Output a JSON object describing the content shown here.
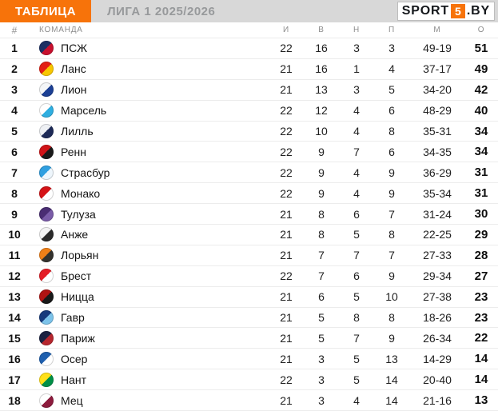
{
  "header": {
    "badge": "ТАБЛИЦА",
    "title": "ЛИГА 1 2025/2026",
    "logo": {
      "part1": "SPORT",
      "part2": "5",
      "part3": ".BY"
    }
  },
  "colors": {
    "accent_orange": "#F7730A",
    "topbar_gray": "#D8D8D8",
    "title_text": "#97999B",
    "separator": "#ECECEC"
  },
  "table": {
    "columns": [
      "#",
      "КОМАНДА",
      "И",
      "В",
      "Н",
      "П",
      "М",
      "О"
    ],
    "rows": [
      {
        "pos": "1",
        "team": "ПСЖ",
        "logo_icon": "psg-logo",
        "logo_colors": [
          "#1b2f63",
          "#c8102e"
        ],
        "p": "22",
        "w": "16",
        "d": "3",
        "l": "3",
        "goals": "49-19",
        "pts": "51"
      },
      {
        "pos": "2",
        "team": "Ланс",
        "logo_icon": "lens-logo",
        "logo_colors": [
          "#e31f13",
          "#f7c600"
        ],
        "p": "21",
        "w": "16",
        "d": "1",
        "l": "4",
        "goals": "37-17",
        "pts": "49"
      },
      {
        "pos": "3",
        "team": "Лион",
        "logo_icon": "lyon-logo",
        "logo_colors": [
          "#f4f6f8",
          "#1b3f94"
        ],
        "p": "21",
        "w": "13",
        "d": "3",
        "l": "5",
        "goals": "34-20",
        "pts": "42"
      },
      {
        "pos": "4",
        "team": "Марсель",
        "logo_icon": "marseille-logo",
        "logo_colors": [
          "#ffffff",
          "#2faee0"
        ],
        "p": "22",
        "w": "12",
        "d": "4",
        "l": "6",
        "goals": "48-29",
        "pts": "40"
      },
      {
        "pos": "5",
        "team": "Лилль",
        "logo_icon": "lille-logo",
        "logo_colors": [
          "#eef0f4",
          "#1d2a57"
        ],
        "p": "22",
        "w": "10",
        "d": "4",
        "l": "8",
        "goals": "35-31",
        "pts": "34"
      },
      {
        "pos": "6",
        "team": "Ренн",
        "logo_icon": "rennes-logo",
        "logo_colors": [
          "#d01317",
          "#1a1a1a"
        ],
        "p": "22",
        "w": "9",
        "d": "7",
        "l": "6",
        "goals": "34-35",
        "pts": "34"
      },
      {
        "pos": "7",
        "team": "Страсбур",
        "logo_icon": "strasbourg-logo",
        "logo_colors": [
          "#2f9fe0",
          "#eef6fc"
        ],
        "p": "22",
        "w": "9",
        "d": "4",
        "l": "9",
        "goals": "36-29",
        "pts": "31"
      },
      {
        "pos": "8",
        "team": "Монако",
        "logo_icon": "monaco-logo",
        "logo_colors": [
          "#d51317",
          "#ffffff"
        ],
        "p": "22",
        "w": "9",
        "d": "4",
        "l": "9",
        "goals": "35-34",
        "pts": "31"
      },
      {
        "pos": "9",
        "team": "Тулуза",
        "logo_icon": "toulouse-logo",
        "logo_colors": [
          "#4a2d73",
          "#7a5ca8"
        ],
        "p": "21",
        "w": "8",
        "d": "6",
        "l": "7",
        "goals": "31-24",
        "pts": "30"
      },
      {
        "pos": "10",
        "team": "Анже",
        "logo_icon": "angers-logo",
        "logo_colors": [
          "#f5f5f5",
          "#2b2b2b"
        ],
        "p": "21",
        "w": "8",
        "d": "5",
        "l": "8",
        "goals": "22-25",
        "pts": "29"
      },
      {
        "pos": "11",
        "team": "Лорьян",
        "logo_icon": "lorient-logo",
        "logo_colors": [
          "#f08018",
          "#33322e"
        ],
        "p": "21",
        "w": "7",
        "d": "7",
        "l": "7",
        "goals": "27-33",
        "pts": "28"
      },
      {
        "pos": "12",
        "team": "Брест",
        "logo_icon": "brest-logo",
        "logo_colors": [
          "#e41d25",
          "#ffffff"
        ],
        "p": "22",
        "w": "7",
        "d": "6",
        "l": "9",
        "goals": "29-34",
        "pts": "27"
      },
      {
        "pos": "13",
        "team": "Ницца",
        "logo_icon": "nice-logo",
        "logo_colors": [
          "#b01312",
          "#191919"
        ],
        "p": "21",
        "w": "6",
        "d": "5",
        "l": "10",
        "goals": "27-38",
        "pts": "23"
      },
      {
        "pos": "14",
        "team": "Гавр",
        "logo_icon": "lehavre-logo",
        "logo_colors": [
          "#173a7c",
          "#7cc3ea"
        ],
        "p": "21",
        "w": "5",
        "d": "8",
        "l": "8",
        "goals": "18-26",
        "pts": "23"
      },
      {
        "pos": "15",
        "team": "Париж",
        "logo_icon": "paris-fc-logo",
        "logo_colors": [
          "#1a2141",
          "#b6262e"
        ],
        "p": "21",
        "w": "5",
        "d": "7",
        "l": "9",
        "goals": "26-34",
        "pts": "22"
      },
      {
        "pos": "16",
        "team": "Осер",
        "logo_icon": "auxerre-logo",
        "logo_colors": [
          "#1e5fae",
          "#ffffff"
        ],
        "p": "21",
        "w": "3",
        "d": "5",
        "l": "13",
        "goals": "14-29",
        "pts": "14"
      },
      {
        "pos": "17",
        "team": "Нант",
        "logo_icon": "nantes-logo",
        "logo_colors": [
          "#ffe01a",
          "#008f47"
        ],
        "p": "22",
        "w": "3",
        "d": "5",
        "l": "14",
        "goals": "20-40",
        "pts": "14"
      },
      {
        "pos": "18",
        "team": "Мец",
        "logo_icon": "metz-logo",
        "logo_colors": [
          "#ffffff",
          "#8d1b3d"
        ],
        "p": "21",
        "w": "3",
        "d": "4",
        "l": "14",
        "goals": "21-16",
        "pts": "13"
      }
    ]
  },
  "chart_data": {
    "type": "table",
    "title": "ЛИГА 1 2025/2026",
    "columns": [
      "#",
      "КОМАНДА",
      "И",
      "В",
      "Н",
      "П",
      "М",
      "О"
    ],
    "rows": [
      [
        1,
        "ПСЖ",
        22,
        16,
        3,
        3,
        "49-19",
        51
      ],
      [
        2,
        "Ланс",
        21,
        16,
        1,
        4,
        "37-17",
        49
      ],
      [
        3,
        "Лион",
        21,
        13,
        3,
        5,
        "34-20",
        42
      ],
      [
        4,
        "Марсель",
        22,
        12,
        4,
        6,
        "48-29",
        40
      ],
      [
        5,
        "Лилль",
        22,
        10,
        4,
        8,
        "35-31",
        34
      ],
      [
        6,
        "Ренн",
        22,
        9,
        7,
        6,
        "34-35",
        34
      ],
      [
        7,
        "Страсбур",
        22,
        9,
        4,
        9,
        "36-29",
        31
      ],
      [
        8,
        "Монако",
        22,
        9,
        4,
        9,
        "35-34",
        31
      ],
      [
        9,
        "Тулуза",
        21,
        8,
        6,
        7,
        "31-24",
        30
      ],
      [
        10,
        "Анже",
        21,
        8,
        5,
        8,
        "22-25",
        29
      ],
      [
        11,
        "Лорьян",
        21,
        7,
        7,
        7,
        "27-33",
        28
      ],
      [
        12,
        "Брест",
        22,
        7,
        6,
        9,
        "29-34",
        27
      ],
      [
        13,
        "Ницца",
        21,
        6,
        5,
        10,
        "27-38",
        23
      ],
      [
        14,
        "Гавр",
        21,
        5,
        8,
        8,
        "18-26",
        23
      ],
      [
        15,
        "Париж",
        21,
        5,
        7,
        9,
        "26-34",
        22
      ],
      [
        16,
        "Осер",
        21,
        3,
        5,
        13,
        "14-29",
        14
      ],
      [
        17,
        "Нант",
        22,
        3,
        5,
        14,
        "20-40",
        14
      ],
      [
        18,
        "Мец",
        21,
        3,
        4,
        14,
        "21-16",
        13
      ]
    ]
  }
}
